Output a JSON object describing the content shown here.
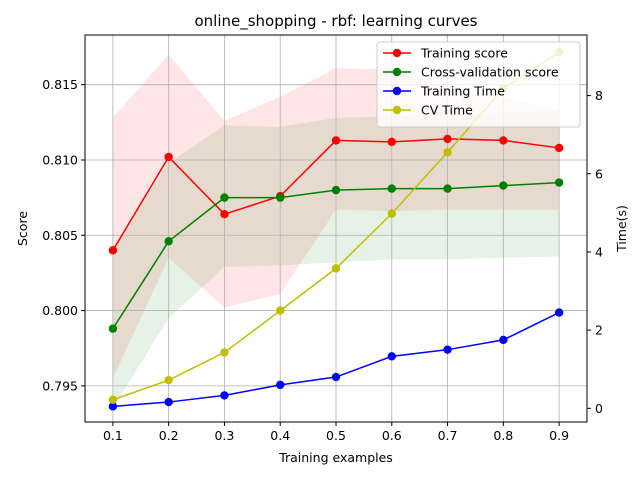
{
  "chart_data": {
    "type": "line",
    "title": "online_shopping - rbf: learning curves",
    "xlabel": "Training examples",
    "ylabel": "Score",
    "y2label": "Time(s)",
    "x": [
      0.1,
      0.2,
      0.3,
      0.4,
      0.5,
      0.6,
      0.7,
      0.8,
      0.9
    ],
    "x_ticks": [
      "0.1",
      "0.2",
      "0.3",
      "0.4",
      "0.5",
      "0.6",
      "0.7",
      "0.8",
      "0.9"
    ],
    "y_ticks": [
      "0.795",
      "0.800",
      "0.805",
      "0.810",
      "0.815"
    ],
    "y2_ticks": [
      "0",
      "2",
      "4",
      "6",
      "8"
    ],
    "xlim": [
      0.05,
      0.95
    ],
    "ylim": [
      0.7926,
      0.8183
    ],
    "y2lim": [
      -0.35,
      9.55
    ],
    "grid": true,
    "legend_position": "top-right",
    "series": [
      {
        "name": "Training score",
        "axis": "left",
        "color": "#ff0000",
        "values": [
          0.804,
          0.8102,
          0.8064,
          0.8076,
          0.8113,
          0.8112,
          0.8114,
          0.8113,
          0.8108
        ],
        "band_low": [
          0.7955,
          0.8035,
          0.8002,
          0.8011,
          0.8067,
          0.8066,
          0.8067,
          0.8067,
          0.8067
        ],
        "band_high": [
          0.8128,
          0.817,
          0.8126,
          0.8142,
          0.8161,
          0.816,
          0.815,
          0.8142,
          0.8133
        ],
        "band_color": "#ff0000"
      },
      {
        "name": "Cross-validation score",
        "axis": "left",
        "color": "#008000",
        "values": [
          0.7988,
          0.8046,
          0.8075,
          0.8075,
          0.808,
          0.8081,
          0.8081,
          0.8083,
          0.8085
        ],
        "band_low": [
          0.7935,
          0.7995,
          0.8029,
          0.803,
          0.8032,
          0.8034,
          0.8034,
          0.8035,
          0.8036
        ],
        "band_high": [
          0.8042,
          0.8098,
          0.8123,
          0.8122,
          0.8128,
          0.8129,
          0.813,
          0.8131,
          0.8133
        ],
        "band_color": "#008000"
      },
      {
        "name": "Training Time",
        "axis": "right",
        "color": "#0000ff",
        "values": [
          0.05,
          0.16,
          0.33,
          0.6,
          0.8,
          1.33,
          1.5,
          1.75,
          2.45
        ]
      },
      {
        "name": "CV Time",
        "axis": "right",
        "color": "#bfbf00",
        "values": [
          0.22,
          0.72,
          1.43,
          2.5,
          3.58,
          4.98,
          6.55,
          8.18,
          9.11
        ]
      }
    ]
  }
}
